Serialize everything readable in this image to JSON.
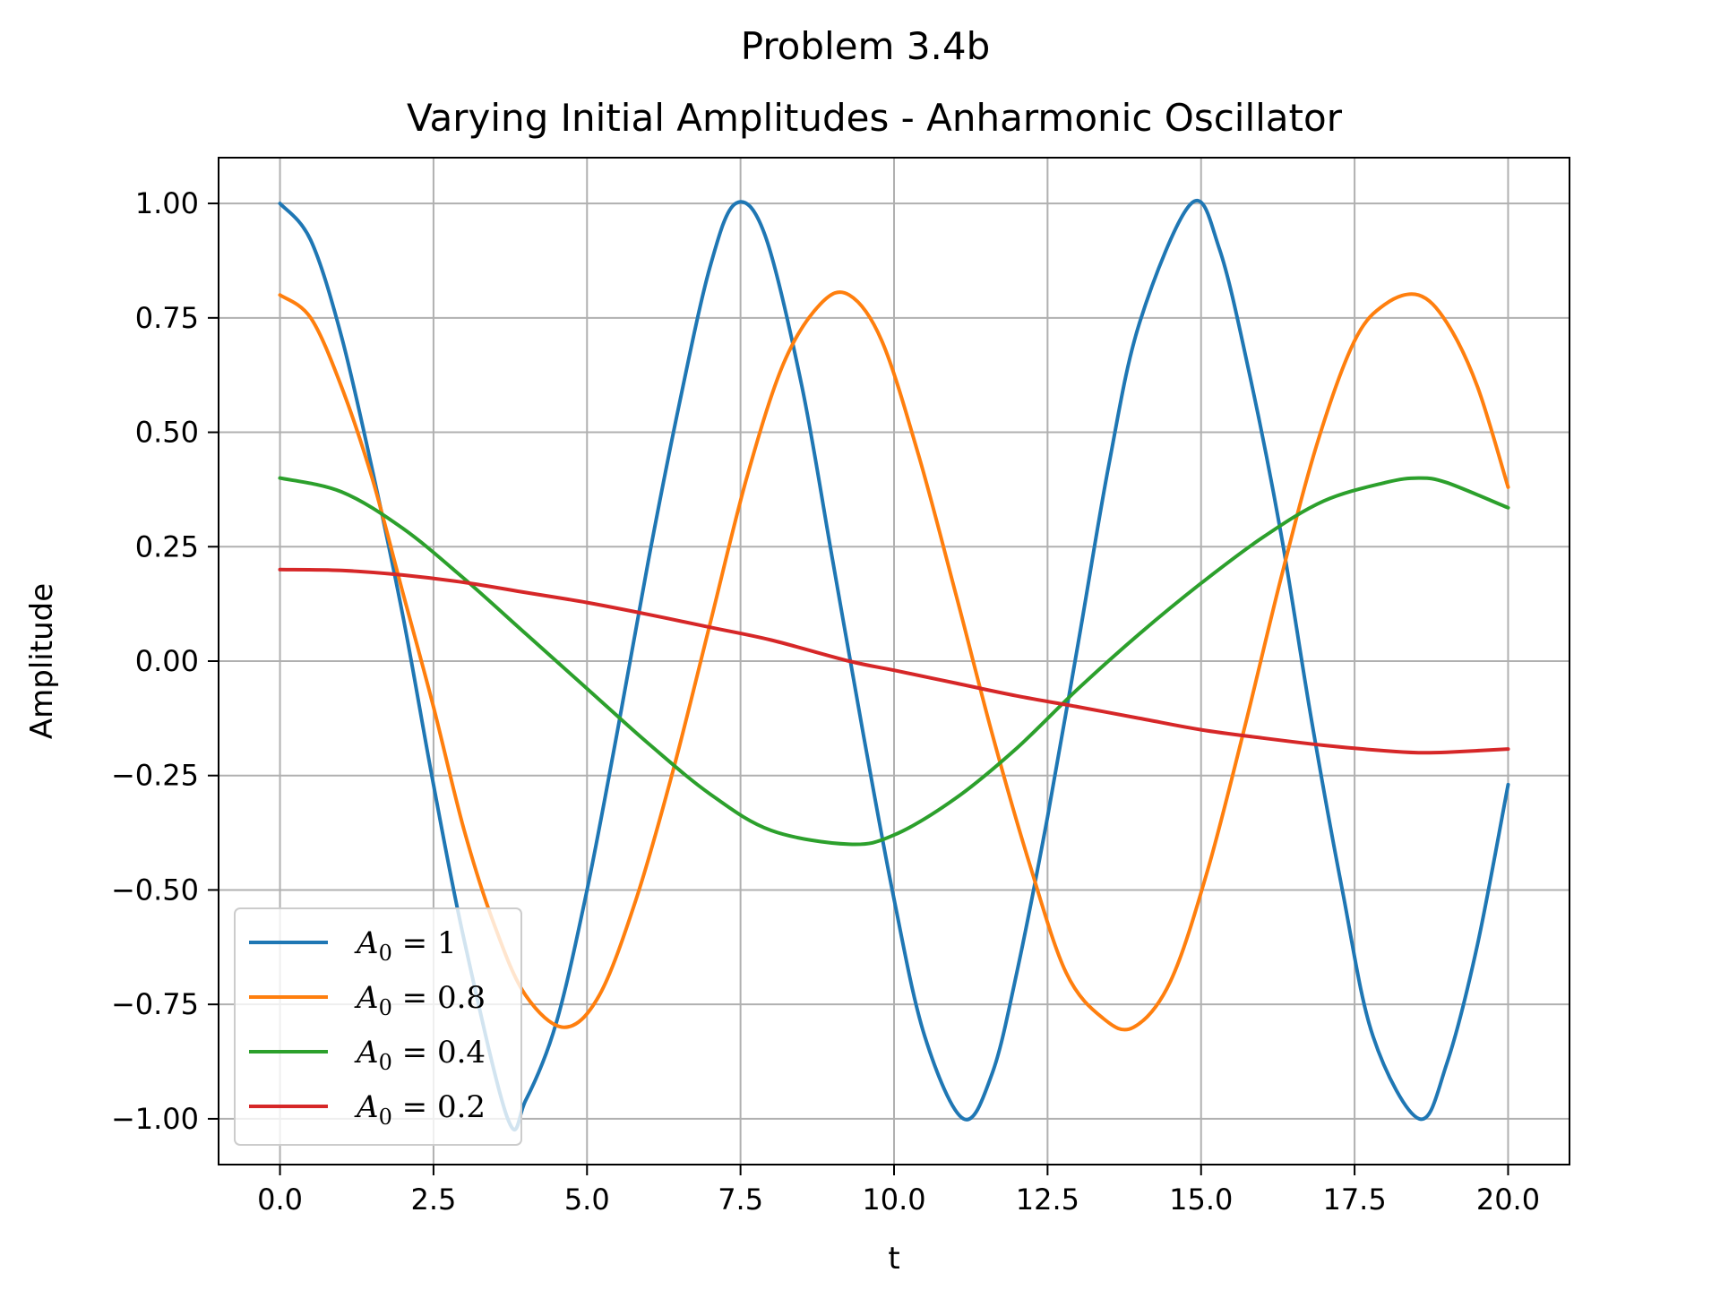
{
  "chart_data": {
    "type": "line",
    "suptitle": "Problem 3.4b",
    "title": "Varying Initial Amplitudes - Anharmonic Oscillator",
    "xlabel": "t",
    "ylabel": "Amplitude",
    "xlim": [
      -1.0,
      21.0
    ],
    "ylim": [
      -1.1,
      1.1
    ],
    "xticks": [
      0,
      2.5,
      5,
      7.5,
      10,
      12.5,
      15,
      17.5,
      20
    ],
    "xtick_labels": [
      "0.0",
      "2.5",
      "5.0",
      "7.5",
      "10.0",
      "12.5",
      "15.0",
      "17.5",
      "20.0"
    ],
    "yticks": [
      -1,
      -0.75,
      -0.5,
      -0.25,
      0,
      0.25,
      0.5,
      0.75,
      1
    ],
    "ytick_labels": [
      "−1.00",
      "−0.75",
      "−0.50",
      "−0.25",
      "0.00",
      "0.25",
      "0.50",
      "0.75",
      "1.00"
    ],
    "grid": true,
    "legend_position": "lower-left",
    "series": [
      {
        "name": "A0 = 1",
        "legend_var": "A",
        "legend_sub": "0",
        "legend_rest": " = 1",
        "color": "#1f77b4",
        "x": [
          0,
          0.5,
          1.0,
          1.5,
          2.0,
          2.5,
          3.0,
          3.71,
          4.0,
          4.5,
          5.0,
          5.5,
          6.0,
          6.5,
          7.0,
          7.42,
          7.9,
          8.5,
          9.0,
          9.5,
          10.0,
          10.5,
          11.13,
          11.6,
          12.0,
          12.5,
          13.0,
          13.5,
          14.0,
          14.84,
          15.3,
          15.8,
          16.3,
          16.8,
          17.3,
          17.8,
          18.55,
          19.0,
          19.5,
          20.0
        ],
        "y": [
          1.0,
          0.92,
          0.71,
          0.42,
          0.1,
          -0.27,
          -0.61,
          -1.0,
          -0.96,
          -0.79,
          -0.5,
          -0.15,
          0.22,
          0.56,
          0.86,
          1.0,
          0.93,
          0.6,
          0.22,
          -0.16,
          -0.52,
          -0.82,
          -1.0,
          -0.9,
          -0.68,
          -0.34,
          0.04,
          0.43,
          0.74,
          1.0,
          0.9,
          0.62,
          0.28,
          -0.13,
          -0.5,
          -0.82,
          -1.0,
          -0.88,
          -0.62,
          -0.27
        ]
      },
      {
        "name": "A0 = 0.8",
        "legend_var": "A",
        "legend_sub": "0",
        "legend_rest": " = 0.8",
        "color": "#ff7f0e",
        "x": [
          0,
          0.5,
          1.0,
          1.5,
          2.0,
          2.5,
          3.0,
          3.5,
          4.0,
          4.63,
          5.2,
          5.8,
          6.4,
          7.0,
          7.6,
          8.2,
          8.8,
          9.27,
          9.8,
          10.4,
          11.0,
          11.6,
          12.2,
          12.8,
          13.4,
          13.9,
          14.5,
          15.1,
          15.7,
          16.3,
          16.9,
          17.5,
          18.0,
          18.54,
          19.0,
          19.5,
          20.0
        ],
        "y": [
          0.8,
          0.75,
          0.6,
          0.4,
          0.15,
          -0.1,
          -0.37,
          -0.58,
          -0.73,
          -0.8,
          -0.73,
          -0.52,
          -0.24,
          0.08,
          0.4,
          0.65,
          0.78,
          0.8,
          0.7,
          0.45,
          0.15,
          -0.16,
          -0.44,
          -0.68,
          -0.78,
          -0.8,
          -0.7,
          -0.46,
          -0.15,
          0.18,
          0.48,
          0.7,
          0.78,
          0.8,
          0.74,
          0.6,
          0.38
        ]
      },
      {
        "name": "A0 = 0.4",
        "legend_var": "A",
        "legend_sub": "0",
        "legend_rest": " = 0.4",
        "color": "#2ca02c",
        "x": [
          0,
          1.0,
          2.0,
          3.0,
          4.0,
          5.0,
          6.0,
          7.0,
          8.0,
          9.27,
          10.0,
          11.0,
          12.0,
          13.0,
          14.0,
          15.0,
          16.0,
          17.0,
          18.0,
          18.54,
          19.0,
          20.0
        ],
        "y": [
          0.4,
          0.37,
          0.29,
          0.18,
          0.06,
          -0.06,
          -0.18,
          -0.29,
          -0.37,
          -0.4,
          -0.38,
          -0.3,
          -0.19,
          -0.06,
          0.06,
          0.17,
          0.27,
          0.35,
          0.39,
          0.4,
          0.39,
          0.335
        ]
      },
      {
        "name": "A0 = 0.2",
        "legend_var": "A",
        "legend_sub": "0",
        "legend_rest": " = 0.2",
        "color": "#d62728",
        "x": [
          0,
          1.0,
          2.0,
          3.0,
          4.0,
          5.0,
          6.0,
          7.0,
          8.0,
          9.27,
          10.0,
          11.0,
          12.0,
          13.0,
          14.0,
          15.0,
          16.0,
          17.0,
          18.0,
          18.54,
          19.0,
          20.0
        ],
        "y": [
          0.2,
          0.198,
          0.188,
          0.172,
          0.15,
          0.128,
          0.102,
          0.074,
          0.046,
          0.0,
          -0.02,
          -0.048,
          -0.076,
          -0.1,
          -0.125,
          -0.15,
          -0.168,
          -0.184,
          -0.196,
          -0.2,
          -0.199,
          -0.192
        ]
      }
    ]
  }
}
